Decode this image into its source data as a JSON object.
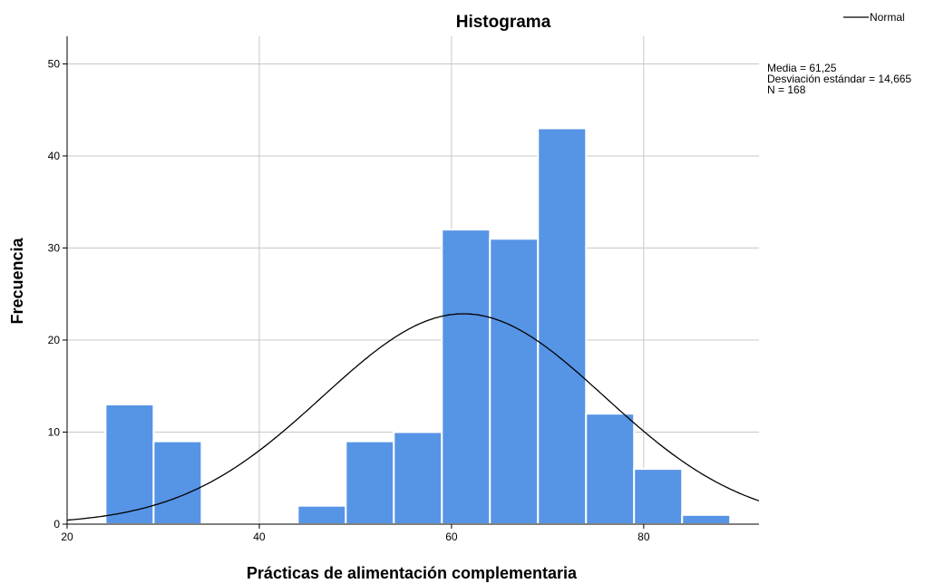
{
  "chart_data": {
    "type": "histogram",
    "title": "Histograma",
    "xlabel": "Prácticas de alimentación complementaria",
    "ylabel": "Frecuencia",
    "xlim": [
      20,
      92
    ],
    "ylim": [
      0,
      53
    ],
    "x_ticks": [
      20,
      40,
      60,
      80
    ],
    "y_ticks": [
      0,
      10,
      20,
      30,
      40,
      50
    ],
    "grid": true,
    "bar_color": "#5694e5",
    "bins": [
      {
        "start": 24,
        "end": 29,
        "count": 13
      },
      {
        "start": 29,
        "end": 34,
        "count": 9
      },
      {
        "start": 34,
        "end": 39,
        "count": 0
      },
      {
        "start": 39,
        "end": 44,
        "count": 0
      },
      {
        "start": 44,
        "end": 49,
        "count": 2
      },
      {
        "start": 49,
        "end": 54,
        "count": 9
      },
      {
        "start": 54,
        "end": 59,
        "count": 10
      },
      {
        "start": 59,
        "end": 64,
        "count": 32
      },
      {
        "start": 64,
        "end": 69,
        "count": 31
      },
      {
        "start": 69,
        "end": 74,
        "count": 43
      },
      {
        "start": 74,
        "end": 79,
        "count": 12
      },
      {
        "start": 79,
        "end": 84,
        "count": 6
      },
      {
        "start": 84,
        "end": 89,
        "count": 1
      }
    ],
    "normal_curve": {
      "mean": 61.25,
      "sd": 14.665,
      "n": 168,
      "bin_width": 5,
      "color": "#000000"
    },
    "legend": {
      "entries": [
        "Normal"
      ],
      "position": "top-right"
    },
    "stats": {
      "mean_label": "Media = 61,25",
      "sd_label": "Desviación estándar = 14,665",
      "n_label": "N = 168"
    }
  }
}
